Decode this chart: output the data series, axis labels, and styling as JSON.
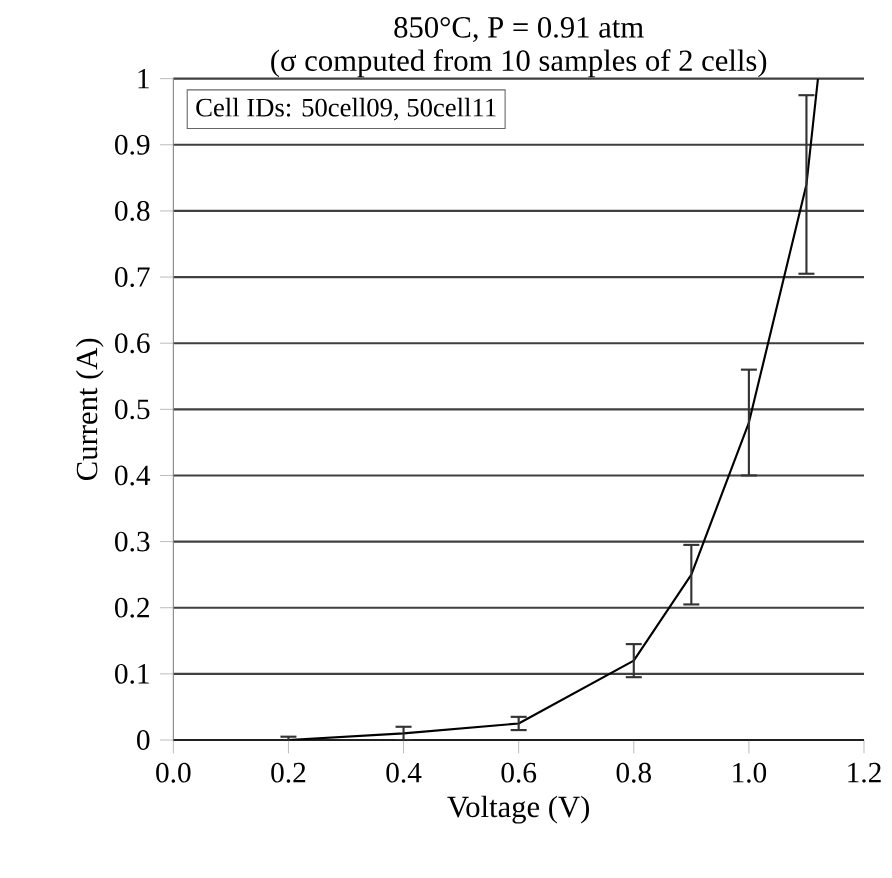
{
  "chart_data": {
    "type": "line",
    "title": "850°C, P = 0.91 atm",
    "subtitle": "(σ computed from 10 samples of 2 cells)",
    "xlabel": "Voltage (V)",
    "ylabel": "Current (A)",
    "annotations": [
      "Cell IDs: 50cell09, 50cell11"
    ],
    "x": [
      0.2,
      0.4,
      0.6,
      0.8,
      0.9,
      1.0,
      1.1,
      1.12
    ],
    "values": [
      0.0,
      0.01,
      0.025,
      0.12,
      0.25,
      0.48,
      0.84,
      1.0
    ],
    "errors": [
      0.005,
      0.01,
      0.01,
      0.025,
      0.045,
      0.08,
      0.135,
      null
    ],
    "color": "#000000",
    "line_style": "solid",
    "grid": "y",
    "xlim": [
      0,
      1.2
    ],
    "ylim": [
      0,
      1
    ],
    "xticks": [
      {
        "value": 0,
        "label": "0.0"
      },
      {
        "value": 0.2,
        "label": "0.2"
      },
      {
        "value": 0.4,
        "label": "0.4"
      },
      {
        "value": 0.6,
        "label": "0.6"
      },
      {
        "value": 0.8,
        "label": "0.8"
      },
      {
        "value": 1.0,
        "label": "1.0"
      },
      {
        "value": 1.2,
        "label": "1.2"
      }
    ],
    "yticks": [
      0,
      0.1,
      0.2,
      0.3,
      0.4,
      0.5,
      0.6,
      0.7,
      0.8,
      0.9,
      1
    ]
  }
}
